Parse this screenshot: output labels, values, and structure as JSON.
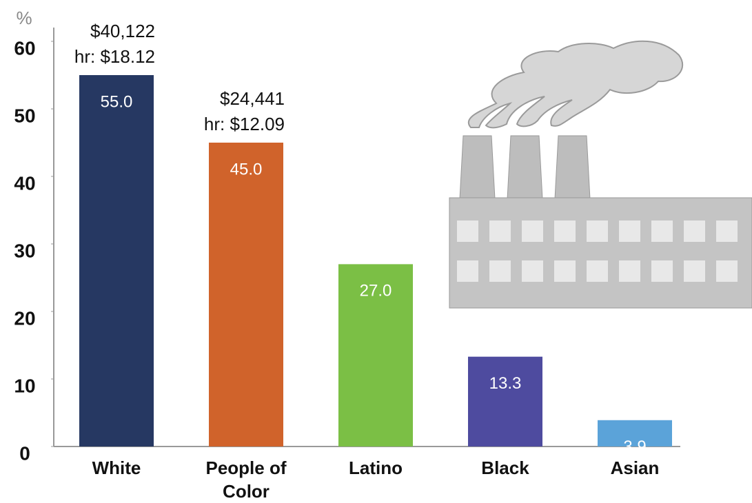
{
  "chart_data": {
    "type": "bar",
    "y_label": "%",
    "categories": [
      "White",
      "People of Color",
      "Latino",
      "Black",
      "Asian"
    ],
    "values": [
      55.0,
      45.0,
      27.0,
      13.3,
      3.9
    ],
    "value_labels": [
      "55.0",
      "45.0",
      "27.0",
      "13.3",
      "3.9"
    ],
    "colors": [
      "#263862",
      "#d0632b",
      "#7bbf45",
      "#4e4b9f",
      "#5ba3d9"
    ],
    "ylim": [
      0,
      60
    ],
    "yticks": [
      0,
      10,
      20,
      30,
      40,
      50,
      60
    ],
    "annotations": [
      {
        "lines": [
          "$40,122",
          "hr: $18.12"
        ]
      },
      {
        "lines": [
          "$24,441",
          "hr: $12.09"
        ]
      }
    ]
  }
}
